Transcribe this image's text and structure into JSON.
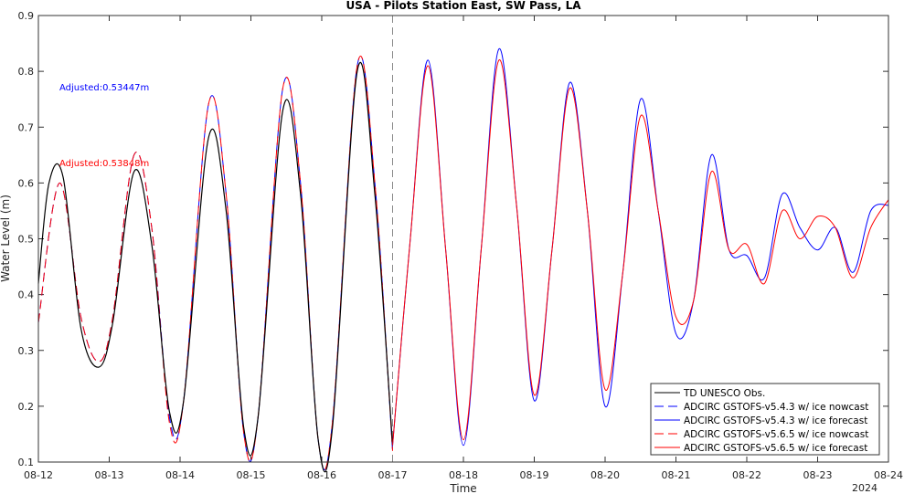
{
  "chart_data": {
    "type": "line",
    "title": "USA - Pilots Station East, SW Pass, LA",
    "xlabel": "Time",
    "ylabel": "Water Level (m)",
    "year_label": "2024",
    "x_ticks": [
      "08-12",
      "08-13",
      "08-14",
      "08-15",
      "08-16",
      "08-17",
      "08-18",
      "08-19",
      "08-20",
      "08-21",
      "08-22",
      "08-23",
      "08-24"
    ],
    "x_range": [
      "08-12",
      "08-24"
    ],
    "ylim": [
      0.1,
      0.9
    ],
    "y_ticks": [
      0.1,
      0.2,
      0.3,
      0.4,
      0.5,
      0.6,
      0.7,
      0.8,
      0.9
    ],
    "nowcast_forecast_divider": "08-17",
    "annotations": [
      {
        "text": "Adjusted:0.53447m",
        "color": "#0000ff"
      },
      {
        "text": "Adjusted:0.53848m",
        "color": "#ff0000"
      }
    ],
    "legend_position": "bottom-right",
    "series": [
      {
        "name": "TD UNESCO Obs.",
        "color": "#000000",
        "style": "solid",
        "x_days": [
          0.0,
          0.15,
          0.35,
          0.6,
          0.85,
          1.05,
          1.35,
          1.6,
          1.85,
          2.05,
          2.4,
          2.65,
          2.9,
          3.1,
          3.45,
          3.7,
          3.95,
          4.15,
          4.5,
          4.75,
          5.0
        ],
        "values": [
          0.42,
          0.6,
          0.61,
          0.34,
          0.27,
          0.35,
          0.62,
          0.49,
          0.19,
          0.21,
          0.68,
          0.55,
          0.16,
          0.18,
          0.73,
          0.58,
          0.14,
          0.16,
          0.8,
          0.58,
          0.13
        ]
      },
      {
        "name": "ADCIRC GSTOFS-v5.4.3 w/ ice nowcast",
        "color": "#0000ff",
        "style": "dashed",
        "x_days": [
          0.0,
          0.3,
          0.6,
          0.85,
          1.05,
          1.35,
          1.6,
          1.85,
          2.05,
          2.4,
          2.65,
          2.9,
          3.1,
          3.45,
          3.7,
          3.95,
          4.15,
          4.5,
          4.75,
          5.0
        ],
        "values": [
          0.35,
          0.6,
          0.36,
          0.28,
          0.36,
          0.65,
          0.52,
          0.18,
          0.21,
          0.74,
          0.58,
          0.15,
          0.18,
          0.77,
          0.6,
          0.14,
          0.17,
          0.81,
          0.6,
          0.12
        ]
      },
      {
        "name": "ADCIRC GSTOFS-v5.4.3 w/ ice forecast",
        "color": "#0000ff",
        "style": "solid",
        "x_days": [
          5.0,
          5.25,
          5.5,
          5.75,
          6.0,
          6.25,
          6.5,
          6.75,
          7.0,
          7.25,
          7.5,
          7.75,
          8.0,
          8.25,
          8.5,
          8.75,
          9.0,
          9.25,
          9.5,
          9.75,
          10.0,
          10.25,
          10.5,
          10.75,
          11.0,
          11.25,
          11.5,
          11.75,
          12.0
        ],
        "values": [
          0.13,
          0.5,
          0.82,
          0.48,
          0.13,
          0.48,
          0.84,
          0.56,
          0.21,
          0.48,
          0.78,
          0.55,
          0.2,
          0.44,
          0.75,
          0.55,
          0.33,
          0.39,
          0.65,
          0.48,
          0.47,
          0.43,
          0.58,
          0.52,
          0.48,
          0.52,
          0.44,
          0.55,
          0.56
        ]
      },
      {
        "name": "ADCIRC GSTOFS-v5.6.5 w/ ice nowcast",
        "color": "#ff0000",
        "style": "dashed",
        "x_days": [
          0.0,
          0.3,
          0.6,
          0.85,
          1.05,
          1.35,
          1.6,
          1.85,
          2.05,
          2.4,
          2.65,
          2.9,
          3.1,
          3.45,
          3.7,
          3.95,
          4.15,
          4.5,
          4.75,
          5.0
        ],
        "values": [
          0.35,
          0.6,
          0.36,
          0.28,
          0.36,
          0.65,
          0.52,
          0.17,
          0.21,
          0.74,
          0.58,
          0.15,
          0.18,
          0.77,
          0.6,
          0.14,
          0.17,
          0.81,
          0.6,
          0.12
        ]
      },
      {
        "name": "ADCIRC GSTOFS-v5.6.5 w/ ice forecast",
        "color": "#ff0000",
        "style": "solid",
        "x_days": [
          5.0,
          5.25,
          5.5,
          5.75,
          6.0,
          6.25,
          6.5,
          6.75,
          7.0,
          7.25,
          7.5,
          7.75,
          8.0,
          8.25,
          8.5,
          8.75,
          9.0,
          9.25,
          9.5,
          9.75,
          10.0,
          10.25,
          10.5,
          10.75,
          11.0,
          11.25,
          11.5,
          11.75,
          12.0
        ],
        "values": [
          0.13,
          0.5,
          0.81,
          0.48,
          0.14,
          0.48,
          0.82,
          0.56,
          0.22,
          0.48,
          0.77,
          0.55,
          0.23,
          0.44,
          0.72,
          0.55,
          0.36,
          0.39,
          0.62,
          0.48,
          0.49,
          0.42,
          0.55,
          0.5,
          0.54,
          0.52,
          0.43,
          0.52,
          0.57
        ]
      }
    ]
  }
}
